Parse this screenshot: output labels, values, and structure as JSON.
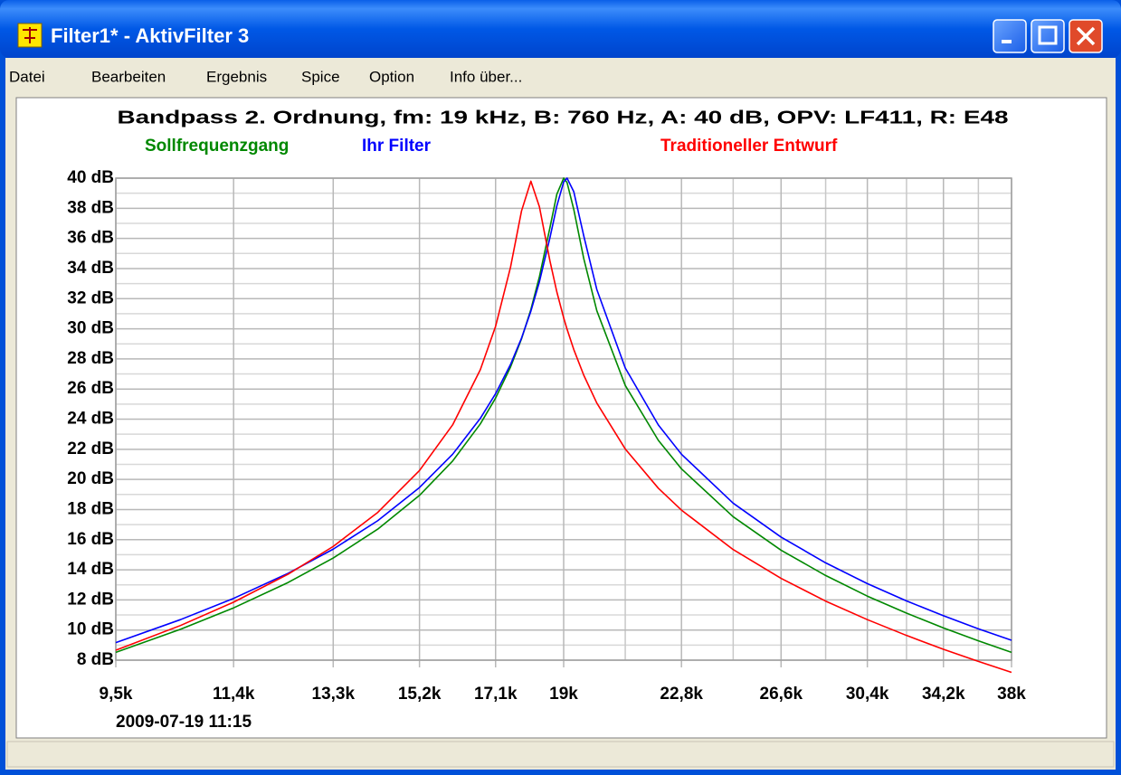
{
  "window": {
    "title": "Filter1* - AktivFilter 3"
  },
  "menu": [
    "Datei",
    "Bearbeiten",
    "Ergebnis",
    "Spice",
    "Option",
    "Info über..."
  ],
  "chart_data": {
    "type": "line",
    "title": "Bandpass 2. Ordnung, fm: 19 kHz, B: 760 Hz, A: 40 dB, OPV: LF411, R: E48",
    "timestamp": "2009-07-19 11:15",
    "xscale": "log",
    "grid": true,
    "x": [
      9500,
      10500,
      11400,
      12400,
      13300,
      14250,
      15200,
      16000,
      16700,
      17100,
      17500,
      17800,
      18060,
      18300,
      18600,
      18800,
      19000,
      19100,
      19300,
      19600,
      20000,
      20900,
      22000,
      22800,
      24700,
      26600,
      28500,
      30400,
      32300,
      34200,
      36100,
      38000
    ],
    "series": [
      {
        "name": "Sollfrequenzgang",
        "color": "#008800",
        "values": [
          8.52,
          10.05,
          11.47,
          13.15,
          14.78,
          16.7,
          18.94,
          21.22,
          23.68,
          25.4,
          27.46,
          29.33,
          31.28,
          33.45,
          36.71,
          38.93,
          40,
          39.71,
          37.92,
          34.66,
          31.2,
          26.24,
          22.59,
          20.7,
          17.52,
          15.3,
          13.62,
          12.25,
          11.12,
          10.14,
          9.28,
          8.52
        ]
      },
      {
        "name": "Ihr Filter",
        "color": "#0000ff",
        "values": [
          9.16,
          10.69,
          12.1,
          13.76,
          15.37,
          17.26,
          19.46,
          21.67,
          24.05,
          25.69,
          27.63,
          29.38,
          31.17,
          33.12,
          36.04,
          38.15,
          39.75,
          40,
          39.1,
          36.17,
          32.61,
          27.4,
          23.61,
          21.67,
          18.42,
          16.17,
          14.46,
          13.08,
          11.93,
          10.95,
          10.08,
          9.32
        ]
      },
      {
        "name": "Traditioneller Entwurf",
        "color": "#ff0000",
        "values": [
          8.66,
          10.3,
          11.85,
          13.7,
          15.55,
          17.81,
          20.59,
          23.62,
          27.28,
          30.16,
          34.09,
          37.82,
          39.8,
          38.1,
          34.51,
          32.45,
          30.73,
          29.97,
          28.62,
          26.92,
          25.07,
          22.02,
          19.41,
          17.96,
          15.34,
          13.43,
          11.92,
          10.69,
          9.64,
          8.72,
          7.92,
          7.19
        ]
      }
    ],
    "xlim": [
      9500,
      38000
    ],
    "xticks": [
      {
        "value": 9500,
        "label": "9,5k"
      },
      {
        "value": 11400,
        "label": "11,4k"
      },
      {
        "value": 13300,
        "label": "13,3k"
      },
      {
        "value": 15200,
        "label": "15,2k"
      },
      {
        "value": 17100,
        "label": "17,1k"
      },
      {
        "value": 19000,
        "label": "19k"
      },
      {
        "value": 22800,
        "label": "22,8k"
      },
      {
        "value": 26600,
        "label": "26,6k"
      },
      {
        "value": 30400,
        "label": "30,4k"
      },
      {
        "value": 34200,
        "label": "34,2k"
      },
      {
        "value": 38000,
        "label": "38k"
      }
    ],
    "xminor": [
      20900,
      24700,
      28500,
      32300,
      36100
    ],
    "ylim": [
      8,
      40
    ],
    "yticks": [
      {
        "value": 8,
        "label": "8 dB"
      },
      {
        "value": 10,
        "label": "10 dB"
      },
      {
        "value": 12,
        "label": "12 dB"
      },
      {
        "value": 14,
        "label": "14 dB"
      },
      {
        "value": 16,
        "label": "16 dB"
      },
      {
        "value": 18,
        "label": "18 dB"
      },
      {
        "value": 20,
        "label": "20 dB"
      },
      {
        "value": 22,
        "label": "22 dB"
      },
      {
        "value": 24,
        "label": "24 dB"
      },
      {
        "value": 26,
        "label": "26 dB"
      },
      {
        "value": 28,
        "label": "28 dB"
      },
      {
        "value": 30,
        "label": "30 dB"
      },
      {
        "value": 32,
        "label": "32 dB"
      },
      {
        "value": 34,
        "label": "34 dB"
      },
      {
        "value": 36,
        "label": "36 dB"
      },
      {
        "value": 38,
        "label": "38 dB"
      },
      {
        "value": 40,
        "label": "40 dB"
      }
    ],
    "yminor": [
      9,
      11,
      13,
      15,
      17,
      19,
      21,
      23,
      25,
      27,
      29,
      31,
      33,
      35,
      37,
      39
    ]
  }
}
